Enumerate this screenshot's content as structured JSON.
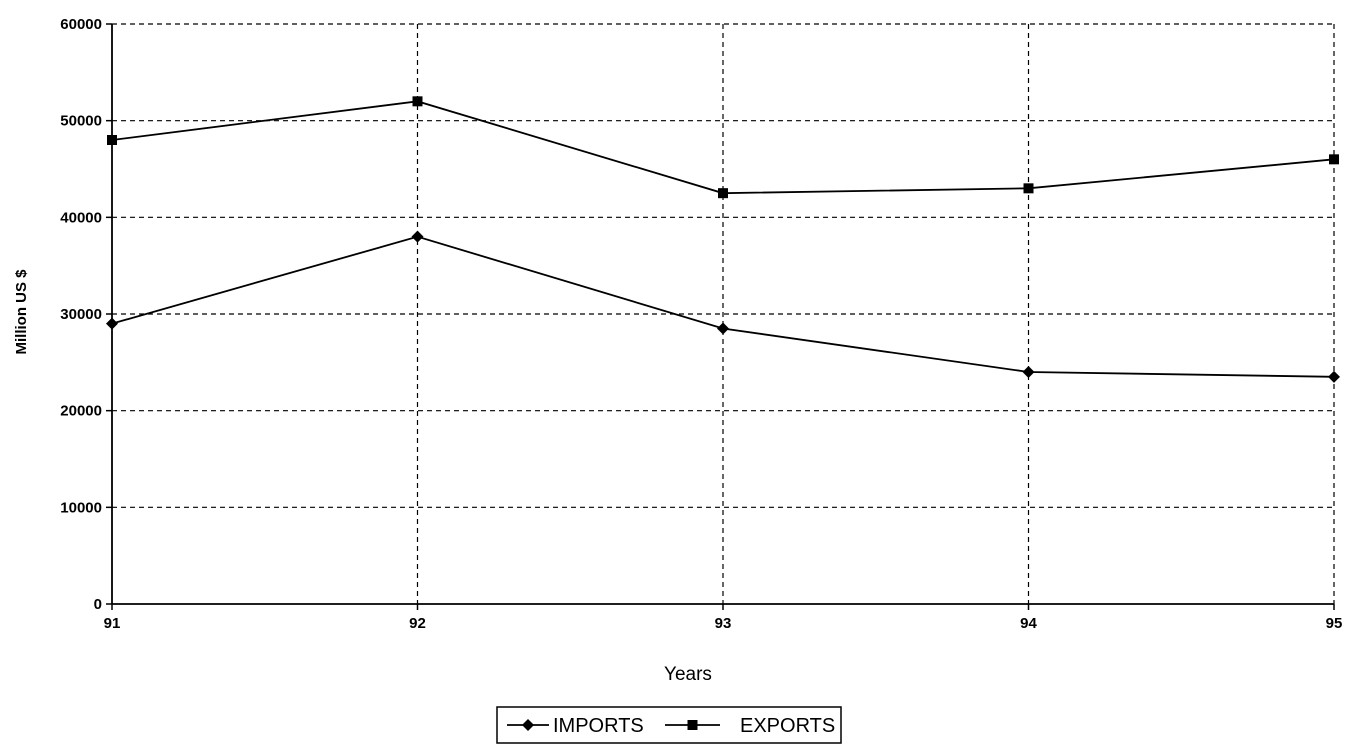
{
  "chart_data": {
    "type": "line",
    "x": [
      "91",
      "92",
      "93",
      "94",
      "95"
    ],
    "series": [
      {
        "name": "IMPORTS",
        "marker": "diamond",
        "values": [
          29000,
          38000,
          28500,
          24000,
          23500
        ]
      },
      {
        "name": "EXPORTS",
        "marker": "square",
        "values": [
          48000,
          52000,
          42500,
          43000,
          46000
        ]
      }
    ],
    "xlabel": "Years",
    "ylabel": "Million US $",
    "ylim": [
      0,
      60000
    ],
    "yticks": [
      "0",
      "10000",
      "20000",
      "30000",
      "40000",
      "50000",
      "60000"
    ],
    "grid": true,
    "grid_style": "dashed",
    "legend_position": "bottom",
    "colors": {
      "line": "#000000",
      "grid": "#000000",
      "background": "#ffffff"
    }
  }
}
